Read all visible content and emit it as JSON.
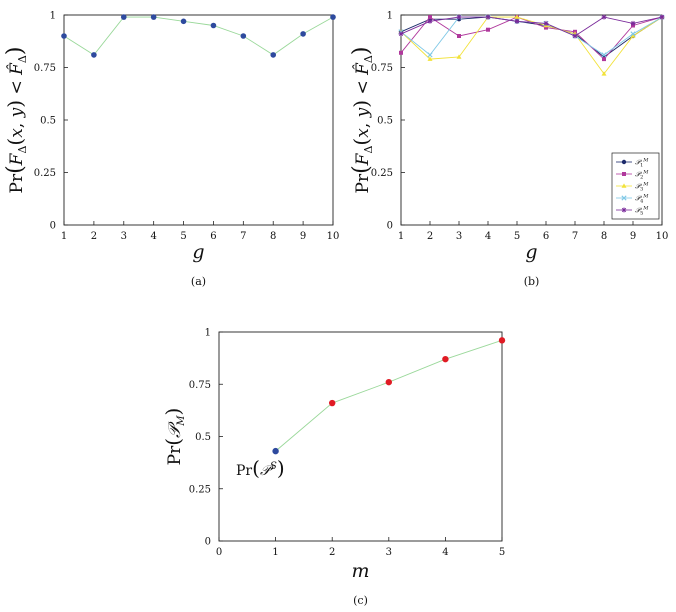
{
  "colors": {
    "blue": "#2e4a9e",
    "red": "#e01b24",
    "green_line": "#9ad89a",
    "magenta": "#b0389c",
    "violet": "#7a2a9a",
    "yellow": "#f2e23a",
    "cyan": "#7fc8e6",
    "navy": "#1c2a6b"
  },
  "chart_data": [
    {
      "type": "scatter",
      "caption": "(a)",
      "xlabel": "g",
      "ylabel": "Pr(F_Δ(x,y) < F̂_Δ)",
      "xlim": [
        1,
        10
      ],
      "ylim": [
        0,
        1
      ],
      "x_ticks": [
        "1",
        "2",
        "3",
        "4",
        "5",
        "6",
        "7",
        "8",
        "9",
        "10"
      ],
      "y_ticks": [
        "0",
        "0.25",
        "0.5",
        "0.75",
        "1"
      ],
      "series": [
        {
          "x": [
            1,
            2,
            3,
            4,
            5,
            6,
            7,
            8,
            9,
            10
          ],
          "values": [
            0.9,
            0.81,
            0.99,
            0.99,
            0.97,
            0.95,
            0.9,
            0.81,
            0.91,
            0.99
          ]
        }
      ]
    },
    {
      "type": "line",
      "caption": "(b)",
      "xlabel": "g",
      "ylabel": "Pr(F_Δ(x,y) < F̂_Δ)",
      "xlim": [
        1,
        10
      ],
      "ylim": [
        0,
        1
      ],
      "x_ticks": [
        "1",
        "2",
        "3",
        "4",
        "5",
        "6",
        "7",
        "8",
        "9",
        "10"
      ],
      "y_ticks": [
        "0",
        "0.25",
        "0.5",
        "0.75",
        "1"
      ],
      "legend_position": "bottom-right",
      "series": [
        {
          "name": "P1M",
          "color_key": "navy",
          "marker": "dot",
          "values": [
            0.92,
            0.98,
            0.98,
            0.99,
            0.97,
            0.95,
            0.91,
            0.8,
            0.9,
            0.99
          ]
        },
        {
          "name": "P2M",
          "color_key": "magenta",
          "marker": "square",
          "values": [
            0.82,
            0.99,
            0.9,
            0.93,
            0.99,
            0.94,
            0.92,
            0.79,
            0.95,
            0.99
          ]
        },
        {
          "name": "P3M",
          "color_key": "yellow",
          "marker": "triangle",
          "values": [
            0.92,
            0.79,
            0.8,
            0.99,
            0.99,
            0.95,
            0.91,
            0.72,
            0.9,
            0.99
          ]
        },
        {
          "name": "P4M",
          "color_key": "cyan",
          "marker": "x",
          "values": [
            0.92,
            0.81,
            0.99,
            0.99,
            0.97,
            0.96,
            0.9,
            0.81,
            0.91,
            0.99
          ]
        },
        {
          "name": "P5M",
          "color_key": "violet",
          "marker": "star",
          "values": [
            0.91,
            0.97,
            0.99,
            0.99,
            0.97,
            0.96,
            0.9,
            0.99,
            0.96,
            0.99
          ]
        }
      ]
    },
    {
      "type": "scatter",
      "caption": "(c)",
      "xlabel": "m",
      "ylabel": "Pr(P_M)",
      "xlim": [
        0,
        5
      ],
      "ylim": [
        0,
        1
      ],
      "x_ticks": [
        "0",
        "1",
        "2",
        "3",
        "4",
        "5"
      ],
      "y_ticks": [
        "0",
        "0.25",
        "0.5",
        "0.75",
        "1"
      ],
      "annotation": "Pr(P^S)",
      "series": [
        {
          "x": [
            1,
            2,
            3,
            4,
            5
          ],
          "values": [
            0.43,
            0.66,
            0.76,
            0.87,
            0.96
          ]
        }
      ]
    }
  ]
}
